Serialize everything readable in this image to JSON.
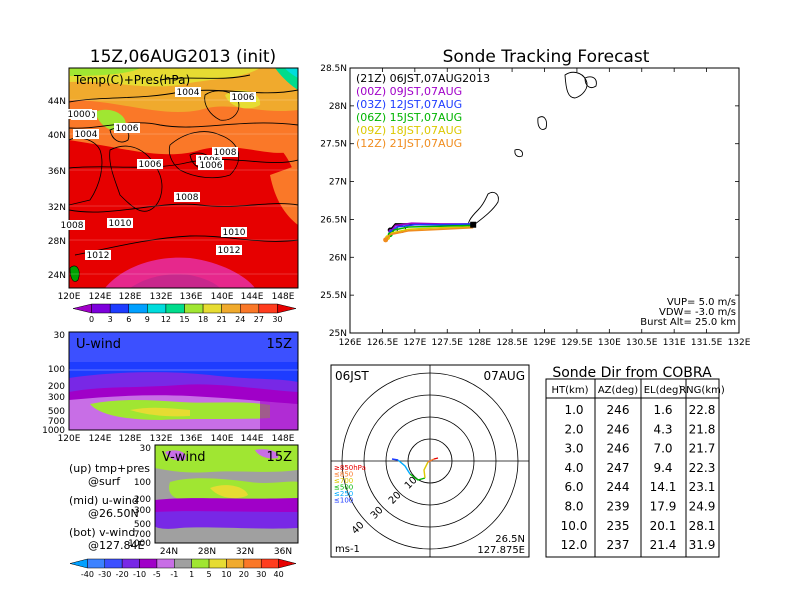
{
  "map_panel": {
    "title": "15Z,06AUG2013 (init)",
    "overlay_label": "Temp(C)+Pres(hPa)",
    "lat_labels": [
      "44N",
      "40N",
      "36N",
      "32N",
      "28N",
      "24N"
    ],
    "lon_labels": [
      "120E",
      "124E",
      "128E",
      "132E",
      "136E",
      "140E",
      "144E",
      "148E"
    ],
    "isobar_labels": [
      "1004",
      "1004",
      "1006",
      "1006",
      "1006",
      "1006",
      "1006",
      "1008",
      "1008",
      "1008",
      "1010",
      "1010",
      "1012",
      "1012",
      "1000",
      "1000"
    ],
    "colorbar_labels": [
      "0",
      "3",
      "6",
      "9",
      "12",
      "15",
      "18",
      "21",
      "24",
      "27",
      "30"
    ],
    "colorbar_colors": [
      "#a000c8",
      "#7d00dc",
      "#1e3cff",
      "#00a0ff",
      "#00dcdc",
      "#00dc8c",
      "#a0e632",
      "#e6dc32",
      "#f0aa2d",
      "#fa7828",
      "#ff3c1e",
      "#e60000"
    ]
  },
  "uwind_panel": {
    "label": "U-wind",
    "time": "15Z",
    "y_labels": [
      "30",
      "100",
      "200",
      "300",
      "500",
      "700",
      "1000"
    ],
    "x_labels": [
      "120E",
      "124E",
      "128E",
      "132E",
      "136E",
      "140E",
      "144E",
      "148E"
    ]
  },
  "vwind_panel": {
    "label": "V-wind",
    "time": "15Z",
    "y_labels": [
      "30",
      "100",
      "200",
      "300",
      "500",
      "700",
      "1000"
    ],
    "x_labels": [
      "24N",
      "28N",
      "32N",
      "36N"
    ],
    "colorbar_labels": [
      "-40",
      "-30",
      "-20",
      "-10",
      "-5",
      "-1",
      "1",
      "5",
      "10",
      "20",
      "30",
      "40"
    ],
    "colorbar_colors": [
      "#00a0ff",
      "#3c82ff",
      "#3c50ff",
      "#7828e6",
      "#a000c8",
      "#c86ee6",
      "#a0a0a0",
      "#a0e632",
      "#e6dc32",
      "#f0aa2d",
      "#fa7828",
      "#ff3c1e",
      "#e60000"
    ]
  },
  "legend_notes": {
    "up": "(up) tmp+pres",
    "up_sub": "@surf",
    "mid": "(mid) u-wind",
    "mid_sub": "@26.50N",
    "bot": "(bot) v-wind",
    "bot_sub": "@127.84E"
  },
  "tracking": {
    "title": "Sonde Tracking Forecast",
    "lat_labels": [
      "28.5N",
      "28N",
      "27.5N",
      "27N",
      "26.5N",
      "26N",
      "25.5N",
      "25N"
    ],
    "lon_labels": [
      "126E",
      "126.5E",
      "127E",
      "127.5E",
      "128E",
      "128.5E",
      "129E",
      "129.5E",
      "130E",
      "130.5E",
      "131E",
      "131.5E",
      "132E"
    ],
    "legend": [
      {
        "label": "(21Z) 06JST,07AUG2013",
        "color": "#000000"
      },
      {
        "label": "(00Z) 09JST,07AUG",
        "color": "#a000c8"
      },
      {
        "label": "(03Z) 12JST,07AUG",
        "color": "#1e3cff"
      },
      {
        "label": "(06Z) 15JST,07AUG",
        "color": "#00b400"
      },
      {
        "label": "(09Z) 18JST,07AUG",
        "color": "#dcc800"
      },
      {
        "label": "(12Z) 21JST,07AUG",
        "color": "#f08c1e"
      }
    ],
    "params": [
      "VUP= 5.0 m/s",
      "VDW= -3.0 m/s",
      "Burst Alt= 25.0 km"
    ]
  },
  "polar": {
    "left_label": "06JST",
    "right_label": "07AUG",
    "range_labels": [
      "10",
      "20",
      "30",
      "40"
    ],
    "pressure_legend": [
      {
        "label": "≥850hPa",
        "color": "#e60000"
      },
      {
        "label": "≤850",
        "color": "#fa7828"
      },
      {
        "label": "≤700",
        "color": "#dcc800"
      },
      {
        "label": "≤500",
        "color": "#00b400"
      },
      {
        "label": "≤250",
        "color": "#00aaff"
      },
      {
        "label": "≤100",
        "color": "#1e3cff"
      }
    ],
    "unit": "ms-1",
    "lat": "26.5N",
    "lon": "127.875E"
  },
  "table": {
    "title": "Sonde Dir from COBRA",
    "headers": [
      "HT(km)",
      "AZ(deg)",
      "EL(deg)",
      "RNG(km)"
    ],
    "rows": [
      [
        "1.0",
        "246",
        "1.6",
        "22.8"
      ],
      [
        "2.0",
        "246",
        "4.3",
        "21.8"
      ],
      [
        "3.0",
        "246",
        "7.0",
        "21.7"
      ],
      [
        "4.0",
        "247",
        "9.4",
        "22.3"
      ],
      [
        "6.0",
        "244",
        "14.1",
        "23.1"
      ],
      [
        "8.0",
        "239",
        "17.9",
        "24.9"
      ],
      [
        "10.0",
        "235",
        "20.1",
        "28.1"
      ],
      [
        "12.0",
        "237",
        "21.4",
        "31.9"
      ]
    ]
  },
  "chart_data": [
    {
      "type": "heatmap",
      "title": "15Z,06AUG2013 (init)",
      "xlabel": "",
      "ylabel": "",
      "x_ticks": [
        "120E",
        "124E",
        "128E",
        "132E",
        "136E",
        "140E",
        "144E",
        "148E"
      ],
      "y_ticks": [
        "24N",
        "28N",
        "32N",
        "36N",
        "40N",
        "44N"
      ],
      "colorbar": [
        0,
        3,
        6,
        9,
        12,
        15,
        18,
        21,
        24,
        27,
        30
      ]
    },
    {
      "type": "line",
      "title": "Sonde Tracking Forecast",
      "xlim": [
        126,
        132
      ],
      "ylim": [
        25,
        28.5
      ],
      "series": [
        {
          "name": "(21Z) 06JST,07AUG2013",
          "x": [
            127.9,
            127.5,
            127.0,
            126.7,
            126.62
          ],
          "y": [
            26.43,
            26.43,
            26.44,
            26.44,
            26.36
          ]
        },
        {
          "name": "(00Z) 09JST,07AUG",
          "x": [
            127.9,
            127.4,
            126.95,
            126.7,
            126.63
          ],
          "y": [
            26.44,
            26.44,
            26.45,
            26.42,
            26.34
          ]
        },
        {
          "name": "(03Z) 12JST,07AUG",
          "x": [
            127.9,
            127.45,
            127.0,
            126.72,
            126.64
          ],
          "y": [
            26.44,
            26.43,
            26.43,
            26.4,
            26.33
          ]
        },
        {
          "name": "(06Z) 15JST,07AUG",
          "x": [
            127.9,
            127.4,
            126.9,
            126.68,
            126.62
          ],
          "y": [
            26.42,
            26.41,
            26.4,
            26.36,
            26.3
          ]
        },
        {
          "name": "(09Z) 18JST,07AUG",
          "x": [
            127.9,
            127.4,
            126.9,
            126.64,
            126.58
          ],
          "y": [
            26.4,
            26.39,
            26.37,
            26.32,
            26.26
          ]
        },
        {
          "name": "(12Z) 21JST,07AUG",
          "x": [
            127.9,
            127.4,
            126.9,
            126.62,
            126.55
          ],
          "y": [
            26.39,
            26.37,
            26.35,
            26.3,
            26.23
          ]
        }
      ]
    },
    {
      "type": "table",
      "title": "Sonde Dir from COBRA",
      "columns": [
        "HT(km)",
        "AZ(deg)",
        "EL(deg)",
        "RNG(km)"
      ],
      "rows": [
        [
          1.0,
          246,
          1.6,
          22.8
        ],
        [
          2.0,
          246,
          4.3,
          21.8
        ],
        [
          3.0,
          246,
          7.0,
          21.7
        ],
        [
          4.0,
          247,
          9.4,
          22.3
        ],
        [
          6.0,
          244,
          14.1,
          23.1
        ],
        [
          8.0,
          239,
          17.9,
          24.9
        ],
        [
          10.0,
          235,
          20.1,
          28.1
        ],
        [
          12.0,
          237,
          21.4,
          31.9
        ]
      ]
    }
  ]
}
